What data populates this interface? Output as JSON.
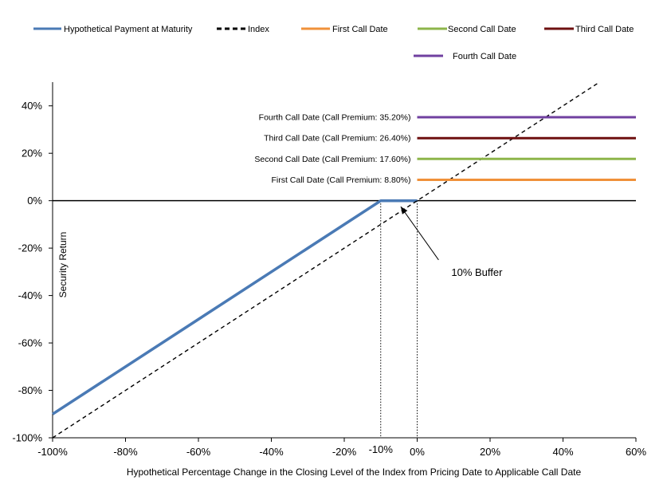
{
  "chart_data": {
    "type": "line",
    "title": "",
    "xlabel": "Hypothetical Percentage Change in the Closing Level of the Index from Pricing Date to Applicable Call Date",
    "ylabel": "Security Return",
    "xlim": [
      -100,
      60
    ],
    "ylim": [
      -100,
      50
    ],
    "x_ticks": [
      -100,
      -80,
      -60,
      -40,
      -20,
      0,
      20,
      40,
      60
    ],
    "x_tick_labels": [
      "-100%",
      "-80%",
      "-60%",
      "-40%",
      "-20%",
      "0%",
      "20%",
      "40%",
      "60%"
    ],
    "y_ticks": [
      -100,
      -80,
      -60,
      -40,
      -20,
      0,
      20,
      40
    ],
    "y_tick_labels": [
      "-100%",
      "-80%",
      "-60%",
      "-40%",
      "-20%",
      "0%",
      "20%",
      "40%"
    ],
    "extra_x_tick": {
      "value": -10,
      "label": "-10%"
    },
    "legend": [
      {
        "name": "Hypothetical Payment at Maturity",
        "color": "#4a7ab5",
        "style": "solid"
      },
      {
        "name": "Index",
        "color": "#000000",
        "style": "dashed"
      },
      {
        "name": "First Call Date",
        "color": "#f0913a",
        "style": "solid"
      },
      {
        "name": "Second Call Date",
        "color": "#8db54a",
        "style": "solid"
      },
      {
        "name": "Third Call Date",
        "color": "#6e1010",
        "style": "solid"
      },
      {
        "name": "Fourth Call Date",
        "color": "#7040a0",
        "style": "solid"
      }
    ],
    "series": [
      {
        "name": "Hypothetical Payment at Maturity",
        "color": "#4a7ab5",
        "dashed": false,
        "points": [
          [
            -100,
            -90
          ],
          [
            -10,
            0
          ],
          [
            0,
            0
          ]
        ]
      },
      {
        "name": "Index",
        "color": "#000000",
        "dashed": true,
        "points": [
          [
            -100,
            -100
          ],
          [
            50,
            50
          ]
        ]
      },
      {
        "name": "First Call Date",
        "color": "#f0913a",
        "dashed": false,
        "points": [
          [
            0,
            8.8
          ],
          [
            60,
            8.8
          ]
        ],
        "label": "First Call Date (Call Premium: 8.80%)"
      },
      {
        "name": "Second Call Date",
        "color": "#8db54a",
        "dashed": false,
        "points": [
          [
            0,
            17.6
          ],
          [
            60,
            17.6
          ]
        ],
        "label": "Second Call Date (Call Premium: 17.60%)"
      },
      {
        "name": "Third Call Date",
        "color": "#6e1010",
        "dashed": false,
        "points": [
          [
            0,
            26.4
          ],
          [
            60,
            26.4
          ]
        ],
        "label": "Third Call Date (Call Premium: 26.40%)"
      },
      {
        "name": "Fourth Call Date",
        "color": "#7040a0",
        "dashed": false,
        "points": [
          [
            0,
            35.2
          ],
          [
            60,
            35.2
          ]
        ],
        "label": "Fourth Call Date (Call Premium: 35.20%)"
      }
    ],
    "reference_lines": [
      {
        "x": -10,
        "from_y": -100,
        "to_y": 0,
        "style": "dotted"
      },
      {
        "x": 0,
        "from_y": -100,
        "to_y": 0,
        "style": "dotted"
      }
    ],
    "annotation": {
      "text": "10% Buffer",
      "x": 5,
      "y": -28,
      "arrow_to": [
        -4.5,
        -2.5
      ]
    }
  }
}
